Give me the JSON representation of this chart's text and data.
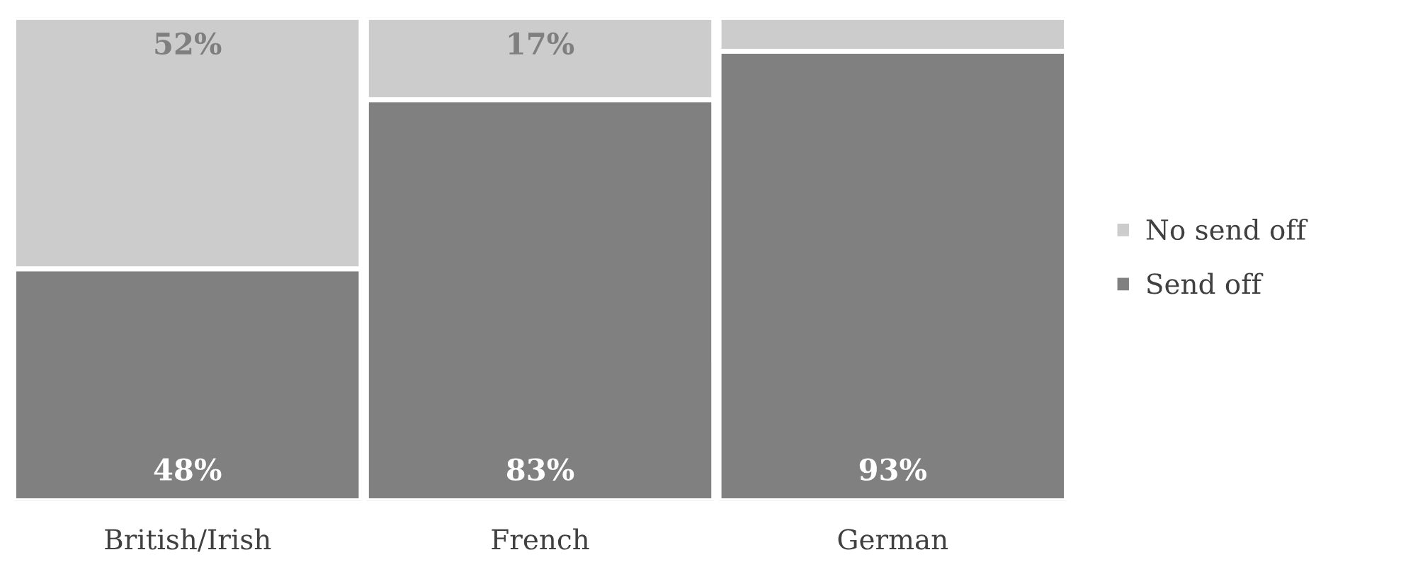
{
  "chart_data": {
    "type": "bar",
    "stacked": true,
    "categories": [
      "British/Irish",
      "French",
      "German"
    ],
    "series": [
      {
        "name": "Send off",
        "color": "#808080",
        "values": [
          48,
          83,
          93
        ],
        "value_labels": [
          "48%",
          "83%",
          "93%"
        ]
      },
      {
        "name": "No send off",
        "color": "#cccccc",
        "values": [
          52,
          17,
          7
        ],
        "value_labels": [
          "52%",
          "17%",
          null
        ]
      }
    ],
    "ylim": [
      0,
      100
    ],
    "legend": "right",
    "grid": false
  }
}
